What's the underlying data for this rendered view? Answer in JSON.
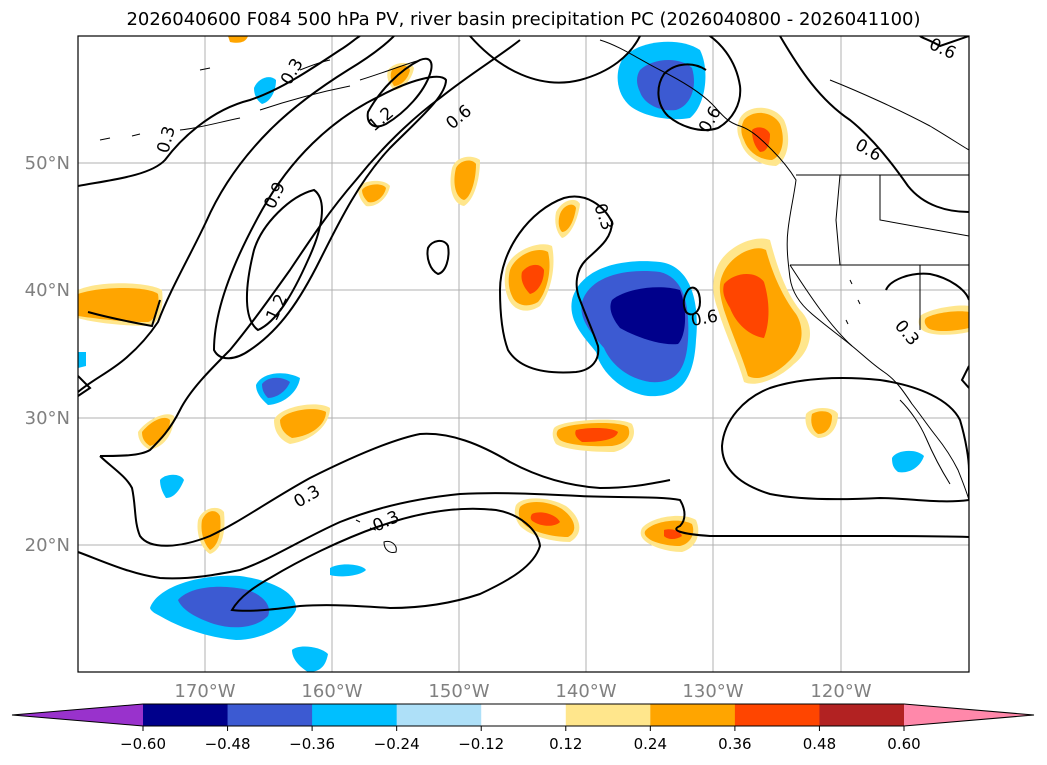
{
  "title": "2026040600 F084 500 hPa PV, river basin precipitation PC (2026040800 - 2026041100)",
  "lat_ticks": [
    "50°N",
    "40°N",
    "30°N",
    "20°N"
  ],
  "lon_ticks": [
    "170°W",
    "160°W",
    "150°W",
    "140°W",
    "130°W",
    "120°W"
  ],
  "colorbar": {
    "levels": [
      "−0.60",
      "−0.48",
      "−0.36",
      "−0.24",
      "−0.12",
      "0.12",
      "0.24",
      "0.36",
      "0.48",
      "0.60"
    ],
    "colors": [
      "#9932cc",
      "#00008b",
      "#3c5ad2",
      "#00bfff",
      "#aee0f8",
      "#ffffff",
      "#ffe68c",
      "#ffa500",
      "#ff4500",
      "#b22222",
      "#ff88aa"
    ]
  },
  "contour_labels": [
    "0.3",
    "0.3",
    "1.2",
    "0.6",
    "0.6",
    "0.9",
    "1.2",
    "0.3",
    "0.6",
    "0.6",
    "0.3",
    "0.3",
    "0.3",
    "0.6"
  ],
  "colors": {
    "neg_dark": "#00008b",
    "neg_mid": "#3c5ad2",
    "neg_light": "#00bfff",
    "neg_pale": "#aee0f8",
    "pos_pale": "#ffe68c",
    "pos_light": "#ffa500",
    "pos_mid": "#ff4500"
  }
}
